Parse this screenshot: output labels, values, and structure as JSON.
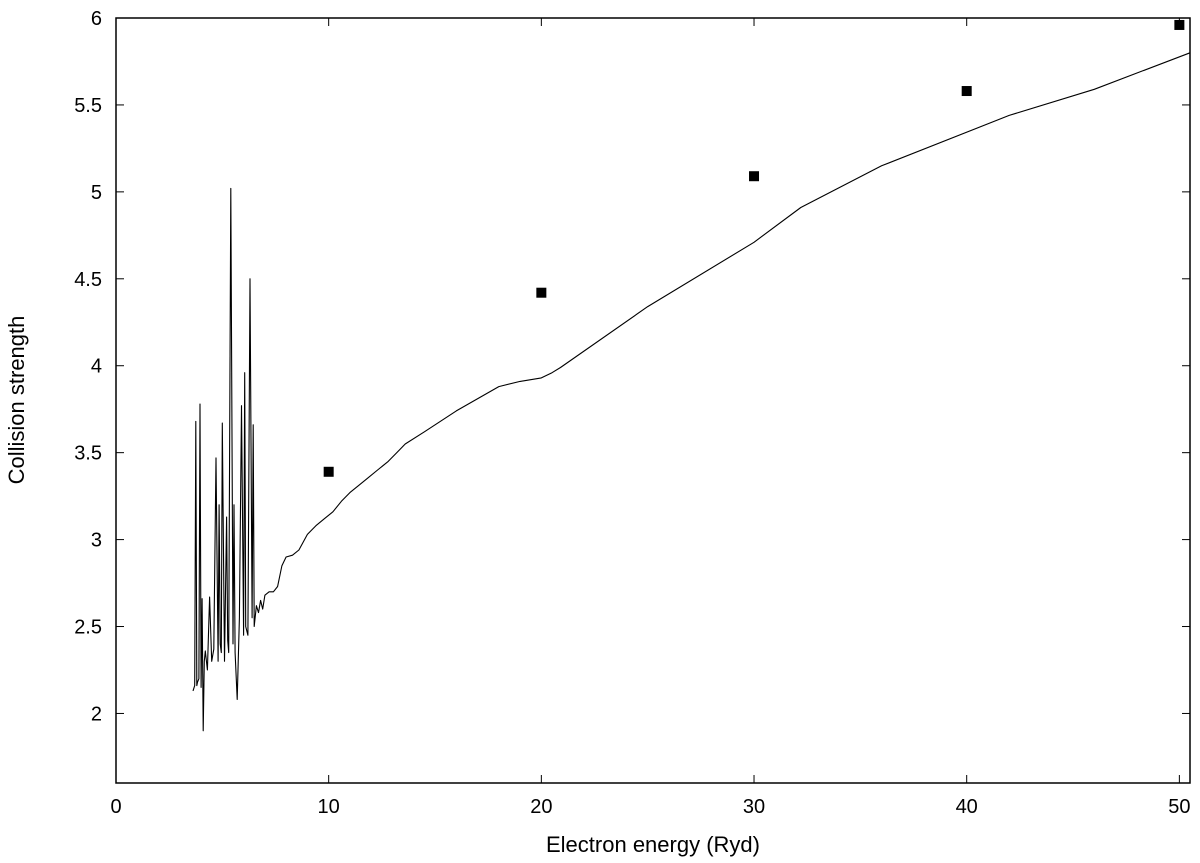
{
  "chart_data": {
    "type": "scatter",
    "title": "",
    "xlabel": "Electron energy (Ryd)",
    "ylabel": "Collision strength",
    "xlim": [
      0,
      50.5
    ],
    "ylim": [
      1.6,
      6
    ],
    "xticks": [
      0,
      10,
      20,
      30,
      40,
      50
    ],
    "xtick_labels": [
      "0",
      "10",
      "20",
      "30",
      "40",
      "50"
    ],
    "yticks": [
      2,
      2.5,
      3,
      3.5,
      4,
      4.5,
      5,
      5.5,
      6
    ],
    "ytick_labels": [
      "2",
      "2.5",
      "3",
      "3.5",
      "4",
      "4.5",
      "5",
      "5.5",
      "6"
    ],
    "grid": false,
    "series": [
      {
        "kind": "line",
        "color": "#000000",
        "x": [
          3.62,
          3.7,
          3.75,
          3.8,
          3.83,
          3.9,
          3.95,
          4.0,
          4.05,
          4.1,
          4.15,
          4.2,
          4.3,
          4.4,
          4.5,
          4.6,
          4.7,
          4.8,
          4.85,
          4.9,
          4.95,
          5.0,
          5.1,
          5.2,
          5.25,
          5.3,
          5.4,
          5.5,
          5.55,
          5.6,
          5.7,
          5.8,
          5.9,
          6.0,
          6.05,
          6.1,
          6.2,
          6.3,
          6.4,
          6.45,
          6.5,
          6.6,
          6.7,
          6.8,
          6.9,
          7.0,
          7.2,
          7.4,
          7.6,
          7.8,
          8.0,
          8.3,
          8.6,
          9.0,
          9.4,
          9.8,
          10.2,
          10.6,
          11.0,
          11.4,
          11.8,
          12.3,
          12.8,
          13.2,
          13.6,
          14.5,
          16.0,
          18.0,
          19.0,
          20.0,
          20.5,
          20.9,
          25.0,
          30.0,
          32.2,
          36.0,
          42.0,
          46.0,
          50.5
        ],
        "y": [
          2.13,
          2.16,
          3.68,
          2.16,
          2.18,
          2.2,
          3.78,
          2.15,
          2.66,
          1.9,
          2.3,
          2.36,
          2.25,
          2.67,
          2.3,
          2.37,
          3.47,
          2.3,
          3.2,
          2.4,
          2.35,
          3.67,
          2.3,
          3.13,
          2.42,
          2.35,
          5.02,
          2.4,
          3.2,
          2.35,
          2.08,
          2.55,
          3.77,
          2.45,
          3.96,
          2.5,
          2.45,
          4.5,
          2.55,
          3.66,
          2.5,
          2.62,
          2.58,
          2.65,
          2.6,
          2.68,
          2.7,
          2.7,
          2.73,
          2.85,
          2.9,
          2.91,
          2.94,
          3.03,
          3.08,
          3.12,
          3.16,
          3.22,
          3.27,
          3.31,
          3.35,
          3.4,
          3.45,
          3.5,
          3.55,
          3.62,
          3.74,
          3.88,
          3.91,
          3.93,
          3.96,
          3.99,
          4.34,
          4.71,
          4.91,
          5.15,
          5.44,
          5.59,
          5.8
        ]
      },
      {
        "kind": "points",
        "marker": "square",
        "color": "#000000",
        "x": [
          10,
          20,
          30,
          40,
          50
        ],
        "y": [
          3.39,
          4.42,
          5.09,
          5.58,
          5.96
        ]
      }
    ]
  }
}
